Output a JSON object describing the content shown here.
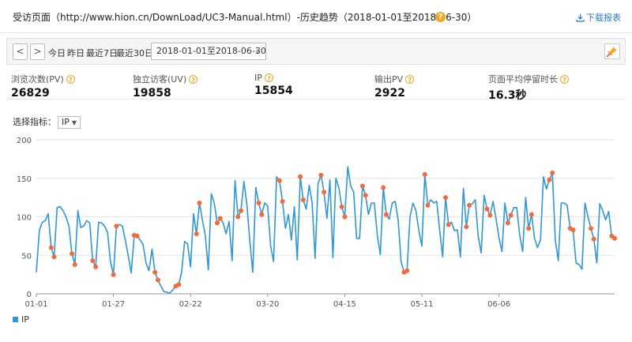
{
  "header": {
    "title": "受访页面（http://www.hion.cn/DownLoad/UC3-Manual.html）-历史趋势（2018-01-01至2018-06-30）",
    "help_glyph": "?",
    "download_label": "下载报表"
  },
  "toolbar": {
    "prev_glyph": "<",
    "next_glyph": ">",
    "quick_ranges": [
      "今日",
      "昨日",
      "最近7日",
      "最近30日"
    ],
    "date_range": "2018-01-01至2018-06-30"
  },
  "metrics": [
    {
      "label": "浏览次数(PV)",
      "value": "26829"
    },
    {
      "label": "独立访客(UV)",
      "value": "19858"
    },
    {
      "label": "IP",
      "value": "15854"
    },
    {
      "label": "输出PV",
      "value": "2922"
    },
    {
      "label": "页面平均停留时长",
      "value": "16.3秒"
    }
  ],
  "indicator": {
    "label": "选择指标：",
    "selected": "IP"
  },
  "colors": {
    "line": "#2f97d8",
    "weekend_marker": "#f26b3a",
    "accent_help": "#f5a623",
    "download_link": "#2b7bd8"
  },
  "chart_data": {
    "type": "line",
    "x_start": "2018-01-01",
    "x_end": "2018-06-30",
    "xticks": [
      "01-01",
      "01-27",
      "02-22",
      "03-20",
      "04-15",
      "05-11",
      "06-06"
    ],
    "ylim": [
      0,
      200
    ],
    "yticks": [
      "0",
      "50",
      "100",
      "150",
      "200"
    ],
    "grid": true,
    "legend": "bottom-left",
    "series": [
      {
        "name": "IP",
        "values": [
          28,
          82,
          93,
          95,
          104,
          60,
          48,
          112,
          113,
          108,
          100,
          88,
          52,
          38,
          108,
          86,
          88,
          95,
          92,
          43,
          35,
          93,
          92,
          88,
          80,
          42,
          25,
          88,
          90,
          88,
          70,
          49,
          27,
          76,
          75,
          70,
          64,
          40,
          30,
          58,
          28,
          18,
          10,
          3,
          2,
          1,
          5,
          10,
          12,
          28,
          68,
          65,
          35,
          104,
          78,
          118,
          96,
          75,
          31,
          130,
          118,
          92,
          98,
          92,
          78,
          94,
          43,
          147,
          100,
          108,
          146,
          116,
          68,
          28,
          138,
          118,
          103,
          118,
          114,
          62,
          42,
          152,
          147,
          120,
          85,
          103,
          70,
          113,
          44,
          152,
          122,
          110,
          141,
          118,
          46,
          143,
          154,
          132,
          98,
          148,
          47,
          150,
          138,
          113,
          100,
          165,
          140,
          132,
          72,
          72,
          140,
          128,
          103,
          118,
          118,
          75,
          51,
          138,
          103,
          97,
          118,
          120,
          96,
          42,
          28,
          30,
          100,
          118,
          108,
          82,
          62,
          155,
          115,
          122,
          118,
          120,
          83,
          48,
          125,
          90,
          93,
          82,
          83,
          48,
          137,
          87,
          115,
          117,
          122,
          75,
          53,
          128,
          110,
          102,
          120,
          98,
          73,
          55,
          118,
          92,
          102,
          112,
          112,
          76,
          55,
          125,
          85,
          103,
          72,
          60,
          70,
          152,
          136,
          148,
          157,
          70,
          43,
          118,
          118,
          115,
          85,
          83,
          40,
          38,
          32,
          118,
          100,
          85,
          71,
          40,
          117,
          108,
          96,
          107,
          75,
          72
        ],
        "weekend_markers": true
      }
    ]
  }
}
